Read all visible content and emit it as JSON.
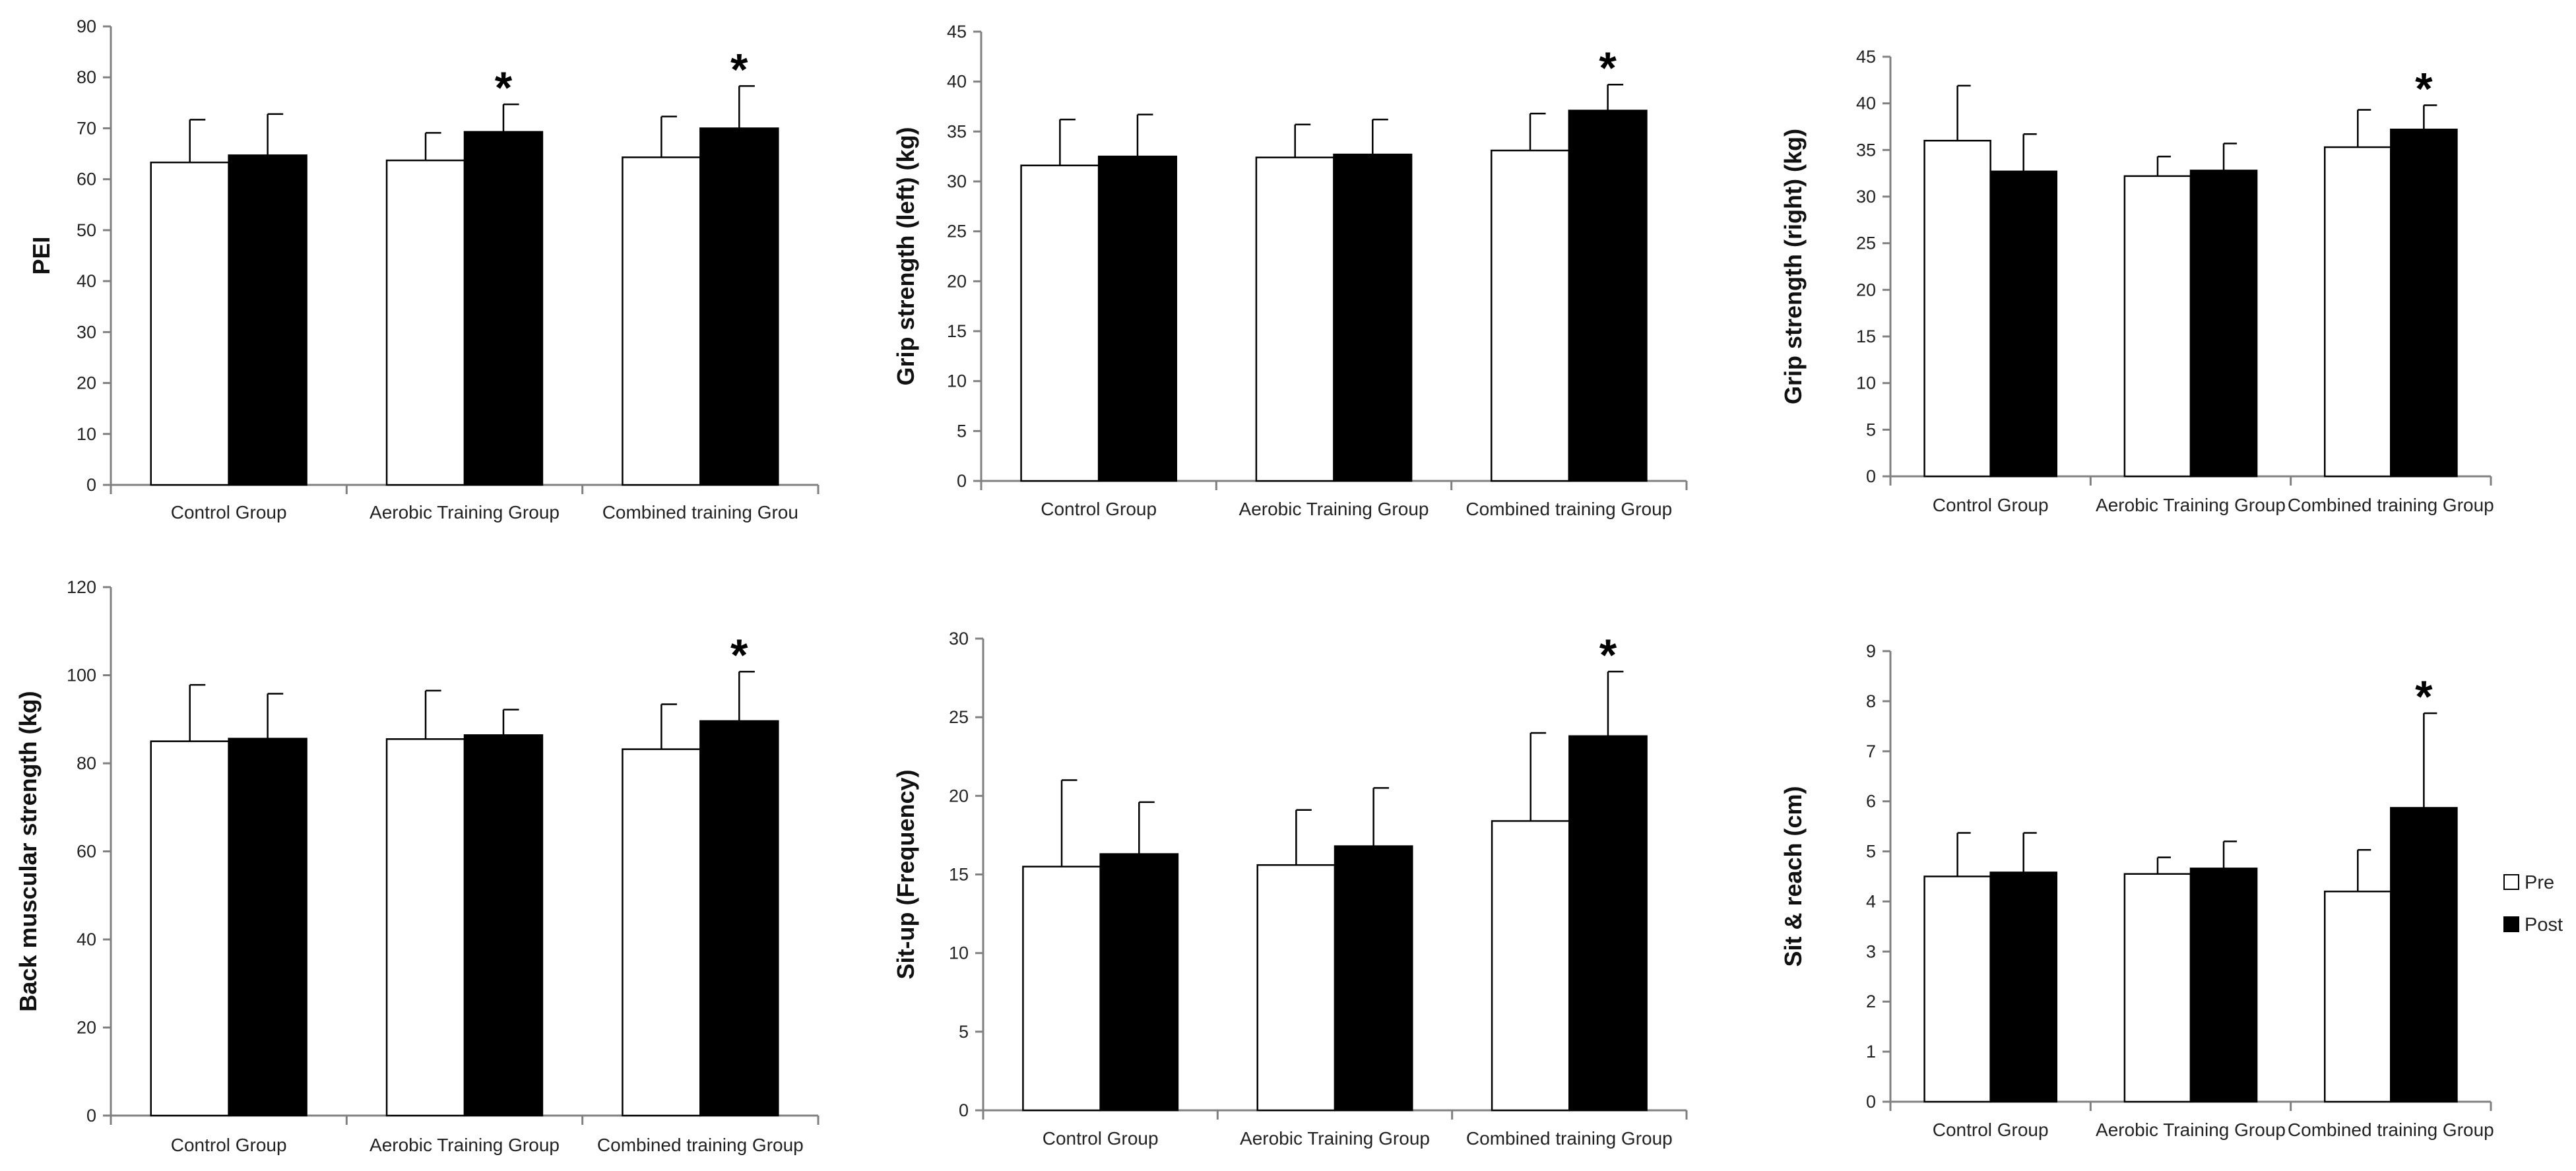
{
  "legend": [
    {
      "label": "Pre",
      "color": "#ffffff"
    },
    {
      "label": "Post",
      "color": "#000000"
    }
  ],
  "colors": {
    "pre": "#ffffff",
    "post": "#000000",
    "axis": "#808080",
    "outline": "#000000"
  },
  "chart_data": [
    {
      "type": "bar",
      "title": "",
      "ylabel": "PEI",
      "xlabel": "",
      "categories": [
        "Control Group",
        "Aerobic Training Group",
        "Combined training Grou"
      ],
      "ylim": [
        0,
        90
      ],
      "yticks": [
        0,
        10,
        20,
        30,
        40,
        50,
        60,
        70,
        80,
        90
      ],
      "series": [
        {
          "name": "Pre",
          "values": [
            63.3,
            63.7,
            64.3
          ],
          "errors": [
            8.4,
            5.4,
            8.0
          ]
        },
        {
          "name": "Post",
          "values": [
            64.7,
            69.3,
            70.0
          ],
          "errors": [
            8.1,
            5.4,
            8.3
          ]
        }
      ],
      "significance": [
        {
          "series": "Post",
          "category": 1,
          "symbol": "*"
        },
        {
          "series": "Post",
          "category": 2,
          "symbol": "*"
        }
      ]
    },
    {
      "type": "bar",
      "title": "",
      "ylabel": "Grip strength (left) (kg)",
      "xlabel": "",
      "categories": [
        "Control Group",
        "Aerobic Training Group",
        "Combined training Group"
      ],
      "ylim": [
        0,
        45
      ],
      "yticks": [
        0,
        5,
        10,
        15,
        20,
        25,
        30,
        35,
        40,
        45
      ],
      "series": [
        {
          "name": "Pre",
          "values": [
            31.6,
            32.4,
            33.1
          ],
          "errors": [
            4.6,
            3.3,
            3.7
          ]
        },
        {
          "name": "Post",
          "values": [
            32.5,
            32.7,
            37.1
          ],
          "errors": [
            4.2,
            3.5,
            2.6
          ]
        }
      ],
      "significance": [
        {
          "series": "Post",
          "category": 2,
          "symbol": "*"
        }
      ]
    },
    {
      "type": "bar",
      "title": "",
      "ylabel": "Grip strength (right) (kg)",
      "xlabel": "",
      "categories": [
        "Control Group",
        "Aerobic Training Group",
        "Combined training Group"
      ],
      "ylim": [
        0,
        45
      ],
      "yticks": [
        0,
        5,
        10,
        15,
        20,
        25,
        30,
        35,
        40,
        45
      ],
      "series": [
        {
          "name": "Pre",
          "values": [
            36.0,
            32.2,
            35.3
          ],
          "errors": [
            5.9,
            2.1,
            4.0
          ]
        },
        {
          "name": "Post",
          "values": [
            32.7,
            32.8,
            37.2
          ],
          "errors": [
            4.0,
            2.9,
            2.6
          ]
        }
      ],
      "significance": [
        {
          "series": "Post",
          "category": 2,
          "symbol": "*"
        }
      ]
    },
    {
      "type": "bar",
      "title": "",
      "ylabel": "Back muscular strength (kg)",
      "xlabel": "",
      "categories": [
        "Control Group",
        "Aerobic Training Group",
        "Combined training Group"
      ],
      "ylim": [
        0,
        120
      ],
      "yticks": [
        0,
        20,
        40,
        60,
        80,
        100,
        120
      ],
      "series": [
        {
          "name": "Pre",
          "values": [
            85.0,
            85.5,
            83.2
          ],
          "errors": [
            12.8,
            11.0,
            10.2
          ]
        },
        {
          "name": "Post",
          "values": [
            85.6,
            86.4,
            89.6
          ],
          "errors": [
            10.2,
            5.8,
            11.2
          ]
        }
      ],
      "significance": [
        {
          "series": "Post",
          "category": 2,
          "symbol": "*"
        }
      ]
    },
    {
      "type": "bar",
      "title": "",
      "ylabel": "Sit-up (Frequency)",
      "xlabel": "",
      "categories": [
        "Control Group",
        "Aerobic Training Group",
        "Combined training Group"
      ],
      "ylim": [
        0,
        30
      ],
      "yticks": [
        0,
        5,
        10,
        15,
        20,
        25,
        30
      ],
      "series": [
        {
          "name": "Pre",
          "values": [
            15.5,
            15.6,
            18.4
          ],
          "errors": [
            5.5,
            3.5,
            5.6
          ]
        },
        {
          "name": "Post",
          "values": [
            16.3,
            16.8,
            23.8
          ],
          "errors": [
            3.3,
            3.7,
            4.1
          ]
        }
      ],
      "significance": [
        {
          "series": "Post",
          "category": 2,
          "symbol": "*"
        }
      ]
    },
    {
      "type": "bar",
      "title": "",
      "ylabel": "Sit & reach (cm)",
      "xlabel": "",
      "categories": [
        "Control Group",
        "Aerobic Training Group",
        "Combined training Group"
      ],
      "ylim": [
        0,
        9
      ],
      "yticks": [
        0,
        1,
        2,
        3,
        4,
        5,
        6,
        7,
        8,
        9
      ],
      "series": [
        {
          "name": "Pre",
          "values": [
            4.5,
            4.55,
            4.2
          ],
          "errors": [
            0.87,
            0.33,
            0.83
          ]
        },
        {
          "name": "Post",
          "values": [
            4.58,
            4.66,
            5.87
          ],
          "errors": [
            0.79,
            0.54,
            1.89
          ]
        }
      ],
      "significance": [
        {
          "series": "Post",
          "category": 2,
          "symbol": "*"
        }
      ]
    }
  ]
}
